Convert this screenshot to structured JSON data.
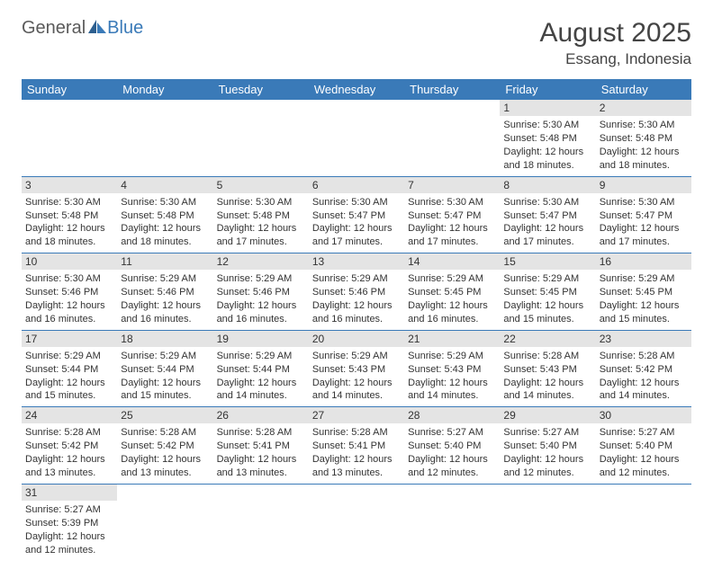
{
  "logo": {
    "general": "General",
    "blue": "Blue"
  },
  "title": {
    "monthYear": "August 2025",
    "location": "Essang, Indonesia"
  },
  "colors": {
    "headerBg": "#3a7ab8",
    "dayNumBg": "#e4e4e4",
    "text": "#333333",
    "titleText": "#444444",
    "borderColor": "#3a7ab8"
  },
  "weekdays": [
    "Sunday",
    "Monday",
    "Tuesday",
    "Wednesday",
    "Thursday",
    "Friday",
    "Saturday"
  ],
  "weeks": [
    [
      null,
      null,
      null,
      null,
      null,
      {
        "day": "1",
        "sunrise": "Sunrise: 5:30 AM",
        "sunset": "Sunset: 5:48 PM",
        "daylight1": "Daylight: 12 hours",
        "daylight2": "and 18 minutes."
      },
      {
        "day": "2",
        "sunrise": "Sunrise: 5:30 AM",
        "sunset": "Sunset: 5:48 PM",
        "daylight1": "Daylight: 12 hours",
        "daylight2": "and 18 minutes."
      }
    ],
    [
      {
        "day": "3",
        "sunrise": "Sunrise: 5:30 AM",
        "sunset": "Sunset: 5:48 PM",
        "daylight1": "Daylight: 12 hours",
        "daylight2": "and 18 minutes."
      },
      {
        "day": "4",
        "sunrise": "Sunrise: 5:30 AM",
        "sunset": "Sunset: 5:48 PM",
        "daylight1": "Daylight: 12 hours",
        "daylight2": "and 18 minutes."
      },
      {
        "day": "5",
        "sunrise": "Sunrise: 5:30 AM",
        "sunset": "Sunset: 5:48 PM",
        "daylight1": "Daylight: 12 hours",
        "daylight2": "and 17 minutes."
      },
      {
        "day": "6",
        "sunrise": "Sunrise: 5:30 AM",
        "sunset": "Sunset: 5:47 PM",
        "daylight1": "Daylight: 12 hours",
        "daylight2": "and 17 minutes."
      },
      {
        "day": "7",
        "sunrise": "Sunrise: 5:30 AM",
        "sunset": "Sunset: 5:47 PM",
        "daylight1": "Daylight: 12 hours",
        "daylight2": "and 17 minutes."
      },
      {
        "day": "8",
        "sunrise": "Sunrise: 5:30 AM",
        "sunset": "Sunset: 5:47 PM",
        "daylight1": "Daylight: 12 hours",
        "daylight2": "and 17 minutes."
      },
      {
        "day": "9",
        "sunrise": "Sunrise: 5:30 AM",
        "sunset": "Sunset: 5:47 PM",
        "daylight1": "Daylight: 12 hours",
        "daylight2": "and 17 minutes."
      }
    ],
    [
      {
        "day": "10",
        "sunrise": "Sunrise: 5:30 AM",
        "sunset": "Sunset: 5:46 PM",
        "daylight1": "Daylight: 12 hours",
        "daylight2": "and 16 minutes."
      },
      {
        "day": "11",
        "sunrise": "Sunrise: 5:29 AM",
        "sunset": "Sunset: 5:46 PM",
        "daylight1": "Daylight: 12 hours",
        "daylight2": "and 16 minutes."
      },
      {
        "day": "12",
        "sunrise": "Sunrise: 5:29 AM",
        "sunset": "Sunset: 5:46 PM",
        "daylight1": "Daylight: 12 hours",
        "daylight2": "and 16 minutes."
      },
      {
        "day": "13",
        "sunrise": "Sunrise: 5:29 AM",
        "sunset": "Sunset: 5:46 PM",
        "daylight1": "Daylight: 12 hours",
        "daylight2": "and 16 minutes."
      },
      {
        "day": "14",
        "sunrise": "Sunrise: 5:29 AM",
        "sunset": "Sunset: 5:45 PM",
        "daylight1": "Daylight: 12 hours",
        "daylight2": "and 16 minutes."
      },
      {
        "day": "15",
        "sunrise": "Sunrise: 5:29 AM",
        "sunset": "Sunset: 5:45 PM",
        "daylight1": "Daylight: 12 hours",
        "daylight2": "and 15 minutes."
      },
      {
        "day": "16",
        "sunrise": "Sunrise: 5:29 AM",
        "sunset": "Sunset: 5:45 PM",
        "daylight1": "Daylight: 12 hours",
        "daylight2": "and 15 minutes."
      }
    ],
    [
      {
        "day": "17",
        "sunrise": "Sunrise: 5:29 AM",
        "sunset": "Sunset: 5:44 PM",
        "daylight1": "Daylight: 12 hours",
        "daylight2": "and 15 minutes."
      },
      {
        "day": "18",
        "sunrise": "Sunrise: 5:29 AM",
        "sunset": "Sunset: 5:44 PM",
        "daylight1": "Daylight: 12 hours",
        "daylight2": "and 15 minutes."
      },
      {
        "day": "19",
        "sunrise": "Sunrise: 5:29 AM",
        "sunset": "Sunset: 5:44 PM",
        "daylight1": "Daylight: 12 hours",
        "daylight2": "and 14 minutes."
      },
      {
        "day": "20",
        "sunrise": "Sunrise: 5:29 AM",
        "sunset": "Sunset: 5:43 PM",
        "daylight1": "Daylight: 12 hours",
        "daylight2": "and 14 minutes."
      },
      {
        "day": "21",
        "sunrise": "Sunrise: 5:29 AM",
        "sunset": "Sunset: 5:43 PM",
        "daylight1": "Daylight: 12 hours",
        "daylight2": "and 14 minutes."
      },
      {
        "day": "22",
        "sunrise": "Sunrise: 5:28 AM",
        "sunset": "Sunset: 5:43 PM",
        "daylight1": "Daylight: 12 hours",
        "daylight2": "and 14 minutes."
      },
      {
        "day": "23",
        "sunrise": "Sunrise: 5:28 AM",
        "sunset": "Sunset: 5:42 PM",
        "daylight1": "Daylight: 12 hours",
        "daylight2": "and 14 minutes."
      }
    ],
    [
      {
        "day": "24",
        "sunrise": "Sunrise: 5:28 AM",
        "sunset": "Sunset: 5:42 PM",
        "daylight1": "Daylight: 12 hours",
        "daylight2": "and 13 minutes."
      },
      {
        "day": "25",
        "sunrise": "Sunrise: 5:28 AM",
        "sunset": "Sunset: 5:42 PM",
        "daylight1": "Daylight: 12 hours",
        "daylight2": "and 13 minutes."
      },
      {
        "day": "26",
        "sunrise": "Sunrise: 5:28 AM",
        "sunset": "Sunset: 5:41 PM",
        "daylight1": "Daylight: 12 hours",
        "daylight2": "and 13 minutes."
      },
      {
        "day": "27",
        "sunrise": "Sunrise: 5:28 AM",
        "sunset": "Sunset: 5:41 PM",
        "daylight1": "Daylight: 12 hours",
        "daylight2": "and 13 minutes."
      },
      {
        "day": "28",
        "sunrise": "Sunrise: 5:27 AM",
        "sunset": "Sunset: 5:40 PM",
        "daylight1": "Daylight: 12 hours",
        "daylight2": "and 12 minutes."
      },
      {
        "day": "29",
        "sunrise": "Sunrise: 5:27 AM",
        "sunset": "Sunset: 5:40 PM",
        "daylight1": "Daylight: 12 hours",
        "daylight2": "and 12 minutes."
      },
      {
        "day": "30",
        "sunrise": "Sunrise: 5:27 AM",
        "sunset": "Sunset: 5:40 PM",
        "daylight1": "Daylight: 12 hours",
        "daylight2": "and 12 minutes."
      }
    ],
    [
      {
        "day": "31",
        "sunrise": "Sunrise: 5:27 AM",
        "sunset": "Sunset: 5:39 PM",
        "daylight1": "Daylight: 12 hours",
        "daylight2": "and 12 minutes."
      },
      null,
      null,
      null,
      null,
      null,
      null
    ]
  ]
}
